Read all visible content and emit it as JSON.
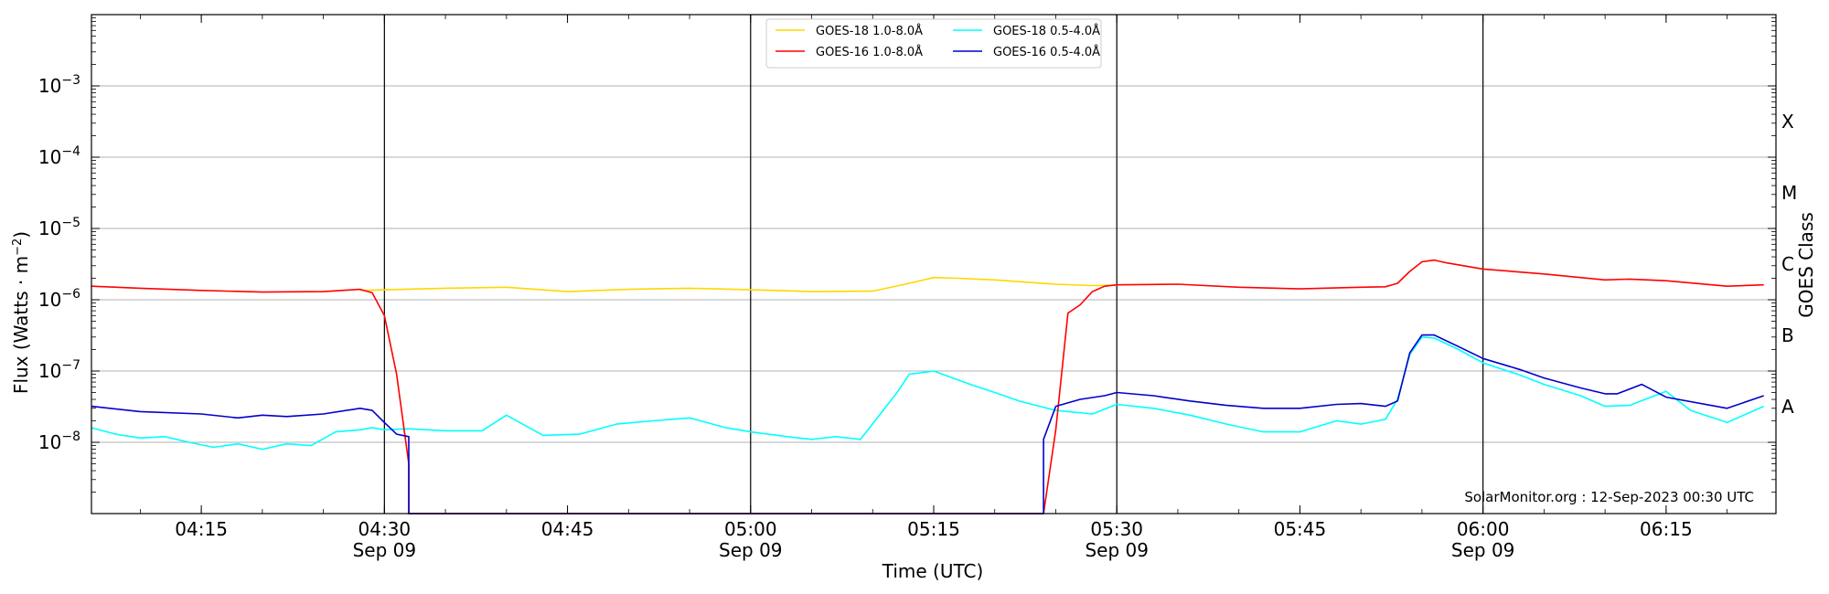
{
  "chart_data": {
    "type": "line",
    "xlabel": "Time (UTC)",
    "ylabel": "Flux (Watts · m",
    "ylabel_sup": "−2",
    "ylabel_close": ")",
    "y2label": "GOES Class",
    "yscale": "log",
    "xlim": [
      "04:06",
      "06:24"
    ],
    "ylim": [
      1e-09,
      0.01
    ],
    "grid": "horizontal",
    "legend_position": "top-center",
    "credit": "SolarMonitor.org : 12-Sep-2023 00:30 UTC",
    "x_ticks": [
      {
        "t": "04:15",
        "label": "04:15",
        "sub": ""
      },
      {
        "t": "04:30",
        "label": "04:30",
        "sub": "Sep 09"
      },
      {
        "t": "04:45",
        "label": "04:45",
        "sub": ""
      },
      {
        "t": "05:00",
        "label": "05:00",
        "sub": "Sep 09"
      },
      {
        "t": "05:15",
        "label": "05:15",
        "sub": ""
      },
      {
        "t": "05:30",
        "label": "05:30",
        "sub": "Sep 09"
      },
      {
        "t": "05:45",
        "label": "05:45",
        "sub": ""
      },
      {
        "t": "06:00",
        "label": "06:00",
        "sub": "Sep 09"
      },
      {
        "t": "06:15",
        "label": "06:15",
        "sub": ""
      }
    ],
    "vlines": [
      "04:30",
      "05:00",
      "05:30",
      "06:00"
    ],
    "y_ticks": [
      {
        "base": "10",
        "exp": "−3",
        "value": 0.001
      },
      {
        "base": "10",
        "exp": "−4",
        "value": 0.0001
      },
      {
        "base": "10",
        "exp": "−5",
        "value": 1e-05
      },
      {
        "base": "10",
        "exp": "−6",
        "value": 1e-06
      },
      {
        "base": "10",
        "exp": "−7",
        "value": 1e-07
      },
      {
        "base": "10",
        "exp": "−8",
        "value": 1e-08
      }
    ],
    "goes_classes": [
      {
        "label": "X",
        "value": 0.000316
      },
      {
        "label": "M",
        "value": 3.16e-05
      },
      {
        "label": "C",
        "value": 3.16e-06
      },
      {
        "label": "B",
        "value": 3.16e-07
      },
      {
        "label": "A",
        "value": 3.16e-08
      }
    ],
    "series": [
      {
        "name": "GOES-18 1.0-8.0Å",
        "color": "#FFD700",
        "x": [
          "04:28",
          "04:35",
          "04:40",
          "04:45",
          "04:50",
          "04:55",
          "05:00",
          "05:05",
          "05:10",
          "05:13",
          "05:15",
          "05:17",
          "05:20",
          "05:25",
          "05:28",
          "05:30"
        ],
        "y": [
          1.35e-06,
          1.45e-06,
          1.5e-06,
          1.3e-06,
          1.4e-06,
          1.45e-06,
          1.38e-06,
          1.3e-06,
          1.32e-06,
          1.7e-06,
          2.05e-06,
          2e-06,
          1.9e-06,
          1.65e-06,
          1.58e-06,
          1.6e-06
        ]
      },
      {
        "name": "GOES-16 1.0-8.0Å",
        "color": "#FF0000",
        "x": [
          "04:06",
          "04:10",
          "04:15",
          "04:20",
          "04:25",
          "04:28",
          "04:29",
          "04:30",
          "04:31",
          "04:32",
          "04:32",
          "05:24",
          "05:25",
          "05:26",
          "05:27",
          "05:28",
          "05:29",
          "05:30",
          "05:35",
          "05:40",
          "05:45",
          "05:50",
          "05:52",
          "05:53",
          "05:54",
          "05:55",
          "05:56",
          "05:57",
          "06:00",
          "06:05",
          "06:10",
          "06:12",
          "06:15",
          "06:20",
          "06:23"
        ],
        "y": [
          1.55e-06,
          1.45e-06,
          1.35e-06,
          1.28e-06,
          1.3e-06,
          1.4e-06,
          1.25e-06,
          6e-07,
          9e-08,
          5e-09,
          1e-09,
          1e-09,
          1.5e-08,
          6.5e-07,
          8.5e-07,
          1.3e-06,
          1.55e-06,
          1.62e-06,
          1.65e-06,
          1.5e-06,
          1.42e-06,
          1.5e-06,
          1.52e-06,
          1.7e-06,
          2.5e-06,
          3.4e-06,
          3.6e-06,
          3.3e-06,
          2.7e-06,
          2.3e-06,
          1.9e-06,
          1.95e-06,
          1.85e-06,
          1.55e-06,
          1.62e-06
        ]
      },
      {
        "name": "GOES-18 0.5-4.0Å",
        "color": "#00FFFF",
        "x": [
          "04:06",
          "04:08",
          "04:10",
          "04:12",
          "04:14",
          "04:16",
          "04:18",
          "04:20",
          "04:22",
          "04:24",
          "04:26",
          "04:28",
          "04:29",
          "04:30",
          "04:32",
          "04:35",
          "04:38",
          "04:40",
          "04:43",
          "04:46",
          "04:49",
          "04:52",
          "04:55",
          "04:58",
          "05:00",
          "05:03",
          "05:05",
          "05:07",
          "05:09",
          "05:12",
          "05:13",
          "05:15",
          "05:18",
          "05:20",
          "05:22",
          "05:25",
          "05:28",
          "05:30",
          "05:33",
          "05:36",
          "05:39",
          "05:42",
          "05:45",
          "05:48",
          "05:50",
          "05:52",
          "05:53",
          "05:54",
          "05:55",
          "05:56",
          "05:58",
          "06:00",
          "06:03",
          "06:05",
          "06:08",
          "06:10",
          "06:12",
          "06:15",
          "06:17",
          "06:20",
          "06:23"
        ],
        "y": [
          1.6e-08,
          1.3e-08,
          1.15e-08,
          1.2e-08,
          1e-08,
          8.5e-09,
          9.5e-09,
          8e-09,
          9.5e-09,
          9e-09,
          1.4e-08,
          1.5e-08,
          1.6e-08,
          1.5e-08,
          1.55e-08,
          1.45e-08,
          1.45e-08,
          2.4e-08,
          1.25e-08,
          1.3e-08,
          1.8e-08,
          2e-08,
          2.2e-08,
          1.6e-08,
          1.4e-08,
          1.2e-08,
          1.1e-08,
          1.2e-08,
          1.1e-08,
          5e-08,
          9e-08,
          1e-07,
          6.5e-08,
          5e-08,
          3.8e-08,
          2.8e-08,
          2.5e-08,
          3.4e-08,
          3e-08,
          2.4e-08,
          1.8e-08,
          1.4e-08,
          1.4e-08,
          2e-08,
          1.8e-08,
          2.1e-08,
          4e-08,
          1.7e-07,
          3e-07,
          2.9e-07,
          2e-07,
          1.3e-07,
          8.8e-08,
          6.5e-08,
          4.5e-08,
          3.2e-08,
          3.3e-08,
          5.2e-08,
          2.8e-08,
          1.9e-08,
          3.2e-08
        ]
      },
      {
        "name": "GOES-16 0.5-4.0Å",
        "color": "#0000CD",
        "x": [
          "04:06",
          "04:10",
          "04:15",
          "04:18",
          "04:20",
          "04:22",
          "04:25",
          "04:28",
          "04:29",
          "04:30",
          "04:31",
          "04:32",
          "04:32",
          "05:24",
          "05:24",
          "05:25",
          "05:27",
          "05:29",
          "05:30",
          "05:33",
          "05:36",
          "05:39",
          "05:42",
          "05:45",
          "05:48",
          "05:50",
          "05:52",
          "05:53",
          "05:54",
          "05:55",
          "05:56",
          "05:58",
          "06:00",
          "06:03",
          "06:05",
          "06:08",
          "06:10",
          "06:11",
          "06:13",
          "06:15",
          "06:20",
          "06:23"
        ],
        "y": [
          3.2e-08,
          2.7e-08,
          2.5e-08,
          2.2e-08,
          2.4e-08,
          2.3e-08,
          2.5e-08,
          3e-08,
          2.8e-08,
          1.9e-08,
          1.3e-08,
          1.2e-08,
          1e-09,
          1e-09,
          1.1e-08,
          3.2e-08,
          4e-08,
          4.5e-08,
          5e-08,
          4.5e-08,
          3.8e-08,
          3.3e-08,
          3e-08,
          3e-08,
          3.4e-08,
          3.5e-08,
          3.2e-08,
          3.8e-08,
          1.8e-07,
          3.2e-07,
          3.2e-07,
          2.2e-07,
          1.5e-07,
          1.05e-07,
          8e-08,
          5.8e-08,
          4.8e-08,
          4.8e-08,
          6.5e-08,
          4.3e-08,
          3e-08,
          4.5e-08
        ]
      }
    ]
  }
}
